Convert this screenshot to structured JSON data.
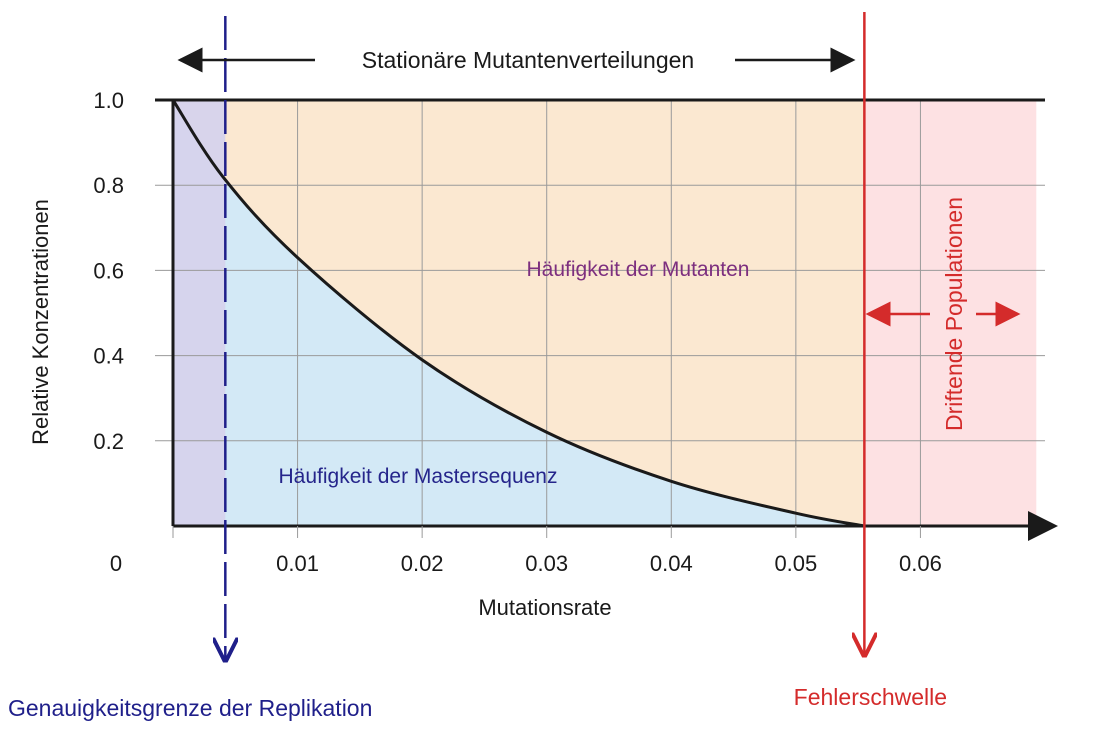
{
  "chart_data": {
    "type": "line",
    "xlabel": "Mutationsrate",
    "ylabel": "Relative Konzentrationen",
    "xlim": [
      0,
      0.07
    ],
    "ylim": [
      0,
      1.0
    ],
    "x_ticks": [
      "0.01",
      "0.02",
      "0.03",
      "0.04",
      "0.05",
      "0.06"
    ],
    "x_tick_values": [
      0.01,
      0.02,
      0.03,
      0.04,
      0.05,
      0.06
    ],
    "y_ticks": [
      "0.2",
      "0.4",
      "0.6",
      "0.8",
      "1.0"
    ],
    "y_tick_values": [
      0.2,
      0.4,
      0.6,
      0.8,
      1.0
    ],
    "origin_label": "0",
    "grid": true,
    "series": [
      {
        "x": [
          0,
          0.004,
          0.01,
          0.02,
          0.03,
          0.04,
          0.05,
          0.0555
        ],
        "y": [
          1.0,
          0.82,
          0.63,
          0.39,
          0.22,
          0.105,
          0.03,
          0.0
        ]
      }
    ],
    "regions": {
      "master_label": "Häufigkeit der Mastersequenz",
      "mutants_label": "Häufigkeit der Mutanten",
      "stationary_label": "Stationäre Mutantenverteilungen",
      "drifting_label": "Driftende Populationen"
    },
    "markers": [
      {
        "label": "Genauigkeitsgrenze der Replikation",
        "x": 0.0042,
        "color": "#1f1f8a"
      },
      {
        "label": "Fehlerschwelle",
        "x": 0.0555,
        "color": "#d42b2b"
      }
    ],
    "colors": {
      "master_fill": "#d3e9f6",
      "mutants_fill": "#fbe8d1",
      "drift_fill": "#fde1e3",
      "left_band_fill": "#d6d3ec",
      "curve": "#1a1a1a",
      "mutants_text": "#7d2f7f",
      "master_text": "#25258b"
    }
  }
}
